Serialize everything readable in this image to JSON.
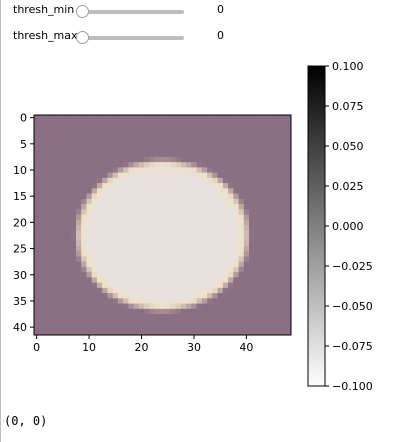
{
  "sliders": [
    {
      "label": "thresh_min",
      "value": "0"
    },
    {
      "label": "thresh_max",
      "value": "0"
    }
  ],
  "status": {
    "coordinates": "(0, 0)"
  },
  "chart_data": {
    "type": "heatmap",
    "title": "",
    "xlabel": "",
    "ylabel": "",
    "xlim": [
      -0.5,
      48.5
    ],
    "ylim": [
      41.5,
      -0.5
    ],
    "x_ticks": [
      "0",
      "10",
      "20",
      "30",
      "40"
    ],
    "y_ticks": [
      "0",
      "5",
      "10",
      "15",
      "20",
      "25",
      "30",
      "35",
      "40"
    ],
    "image": {
      "width": 49,
      "height": 42,
      "background_color": "#8b6f83",
      "blob": {
        "center_x": 24,
        "center_y": 22.5,
        "radius_x": 15.5,
        "radius_y": 13.5,
        "color": "#e8e1de",
        "edge_color": "#efe1c8"
      }
    },
    "colorbar": {
      "min": -0.1,
      "max": 0.1,
      "colormap": "gray_r",
      "tick_labels": [
        "0.100",
        "0.075",
        "0.050",
        "0.025",
        "0.000",
        "−0.025",
        "−0.050",
        "−0.075",
        "−0.100"
      ]
    }
  }
}
